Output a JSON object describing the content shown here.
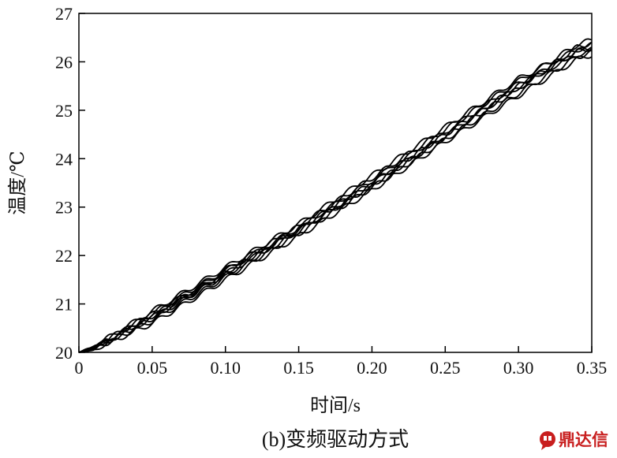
{
  "chart_data": {
    "type": "line",
    "title": "",
    "caption": "(b)变频驱动方式",
    "xlabel": "时间/s",
    "ylabel": "温度/℃",
    "xlim": [
      0,
      0.35
    ],
    "ylim": [
      20,
      27
    ],
    "x_ticks": [
      "0",
      "0.05",
      "0.10",
      "0.15",
      "0.20",
      "0.25",
      "0.30",
      "0.35"
    ],
    "y_ticks": [
      "20",
      "21",
      "22",
      "23",
      "24",
      "25",
      "26",
      "27"
    ],
    "grid": false,
    "legend": "none",
    "line_color": "#000000",
    "series": [
      {
        "x": [
          0,
          0.01,
          0.05,
          0.1,
          0.15,
          0.2,
          0.25,
          0.3,
          0.34,
          0.35
        ],
        "y": [
          20.0,
          20.1,
          20.75,
          21.65,
          22.55,
          23.5,
          24.5,
          25.5,
          26.2,
          26.3
        ]
      },
      {
        "x": [
          0,
          0.01,
          0.05,
          0.1,
          0.15,
          0.2,
          0.25,
          0.3,
          0.34,
          0.35
        ],
        "y": [
          20.0,
          20.08,
          20.7,
          21.6,
          22.5,
          23.45,
          24.45,
          25.45,
          26.3,
          26.4
        ]
      },
      {
        "x": [
          0,
          0.01,
          0.05,
          0.1,
          0.15,
          0.2,
          0.25,
          0.3,
          0.34,
          0.35
        ],
        "y": [
          20.0,
          20.06,
          20.65,
          21.55,
          22.45,
          23.4,
          24.4,
          25.35,
          26.1,
          26.2
        ]
      },
      {
        "x": [
          0,
          0.01,
          0.05,
          0.1,
          0.15,
          0.2,
          0.25,
          0.3,
          0.34,
          0.35
        ],
        "y": [
          20.0,
          20.1,
          20.8,
          21.7,
          22.6,
          23.6,
          24.6,
          25.6,
          26.35,
          26.45
        ]
      },
      {
        "x": [
          0,
          0.01,
          0.05,
          0.1,
          0.15,
          0.2,
          0.25,
          0.3,
          0.34,
          0.35
        ],
        "y": [
          20.0,
          20.05,
          20.6,
          21.5,
          22.4,
          23.35,
          24.35,
          25.3,
          26.05,
          26.15
        ]
      },
      {
        "x": [
          0,
          0.01,
          0.05,
          0.1,
          0.15,
          0.2,
          0.25,
          0.3,
          0.34,
          0.35
        ],
        "y": [
          20.0,
          20.12,
          20.85,
          21.75,
          22.65,
          23.65,
          24.65,
          25.65,
          26.25,
          26.35
        ]
      },
      {
        "x": [
          0,
          0.01,
          0.05,
          0.1,
          0.15,
          0.2,
          0.25,
          0.3,
          0.34,
          0.35
        ],
        "y": [
          20.0,
          20.07,
          20.72,
          21.62,
          22.52,
          23.48,
          24.48,
          25.48,
          26.22,
          26.28
        ]
      },
      {
        "x": [
          0,
          0.01,
          0.05,
          0.1,
          0.15,
          0.2,
          0.25,
          0.3,
          0.34,
          0.35
        ],
        "y": [
          20.0,
          20.09,
          20.78,
          21.68,
          22.58,
          23.55,
          24.55,
          25.55,
          26.15,
          26.25
        ]
      }
    ]
  },
  "watermark": {
    "text": "鼎达信",
    "icon": "chat-bubble-logo-icon"
  }
}
